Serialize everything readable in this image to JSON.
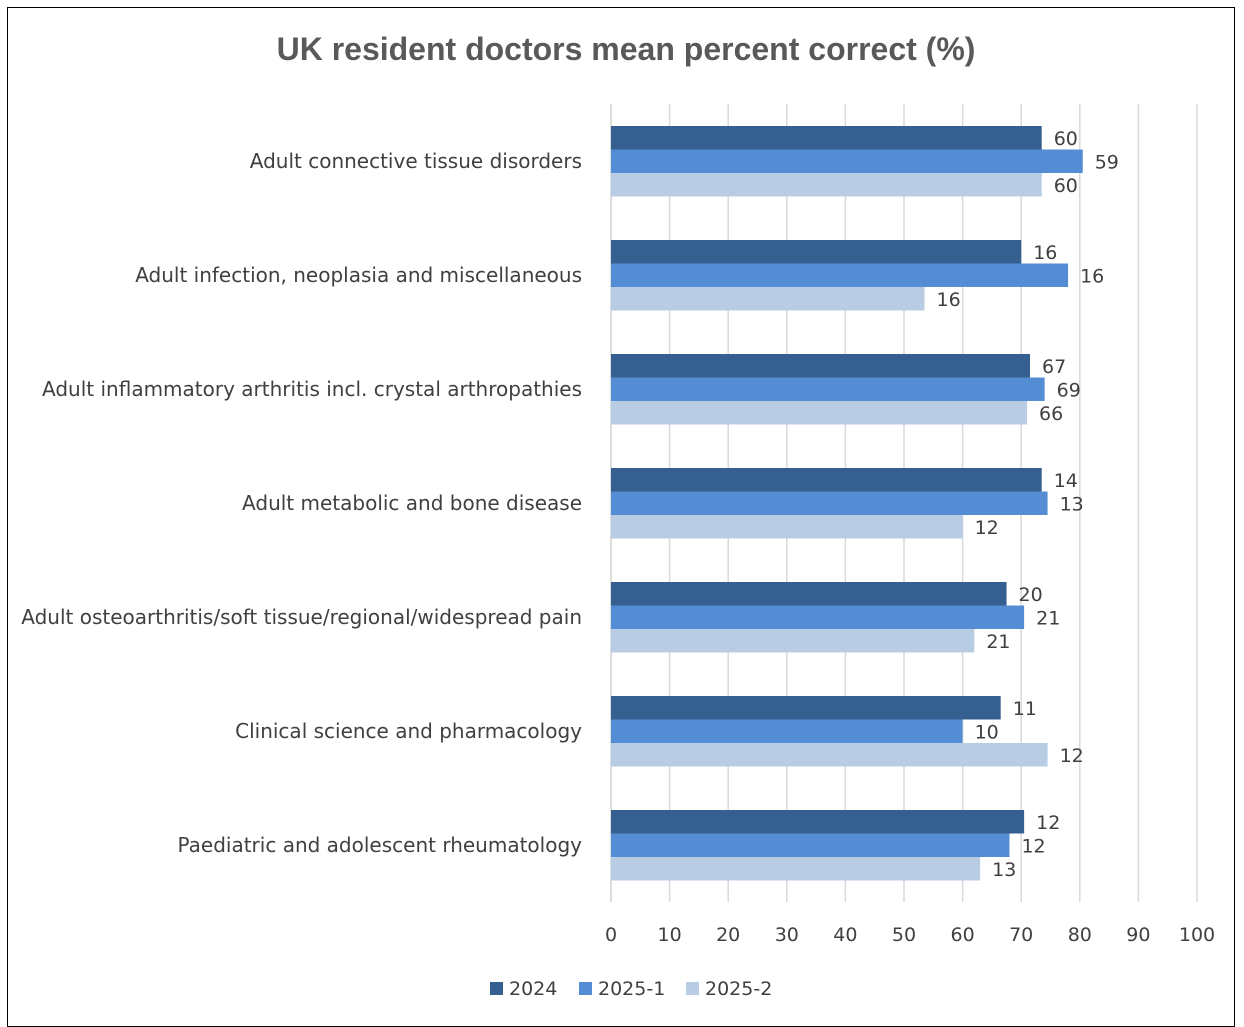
{
  "chart_data": {
    "type": "bar",
    "orientation": "horizontal",
    "title": "UK resident doctors mean percent correct (%)",
    "categories": [
      "Adult connective tissue disorders",
      "Adult infection, neoplasia and miscellaneous",
      "Adult inflammatory arthritis incl. crystal arthropathies",
      "Adult metabolic and bone disease",
      "Adult osteoarthritis/soft tissue/regional/widespread pain",
      "Clinical science and pharmacology",
      "Paediatric and adolescent rheumatology"
    ],
    "series": [
      {
        "name": "2024",
        "color": "#355f8e",
        "values": [
          73.5,
          70,
          71.5,
          73.5,
          67.5,
          66.5,
          70.5
        ],
        "labels": [
          "60",
          "16",
          "67",
          "14",
          "20",
          "11",
          "12"
        ]
      },
      {
        "name": "2025-1",
        "color": "#548dd4",
        "values": [
          80.5,
          78,
          74,
          74.5,
          70.5,
          60,
          68
        ],
        "labels": [
          "59",
          "16",
          "69",
          "13",
          "21",
          "10",
          "12"
        ]
      },
      {
        "name": "2025-2",
        "color": "#b8cce4",
        "values": [
          73.5,
          53.5,
          71,
          60,
          62,
          74.5,
          63
        ],
        "labels": [
          "60",
          "16",
          "66",
          "12",
          "21",
          "12",
          "13"
        ]
      }
    ],
    "xlim": [
      0,
      100
    ],
    "xticks": [
      "0",
      "10",
      "20",
      "30",
      "40",
      "50",
      "60",
      "70",
      "80",
      "90",
      "100"
    ],
    "grid": "vertical",
    "legend": "bottom"
  }
}
